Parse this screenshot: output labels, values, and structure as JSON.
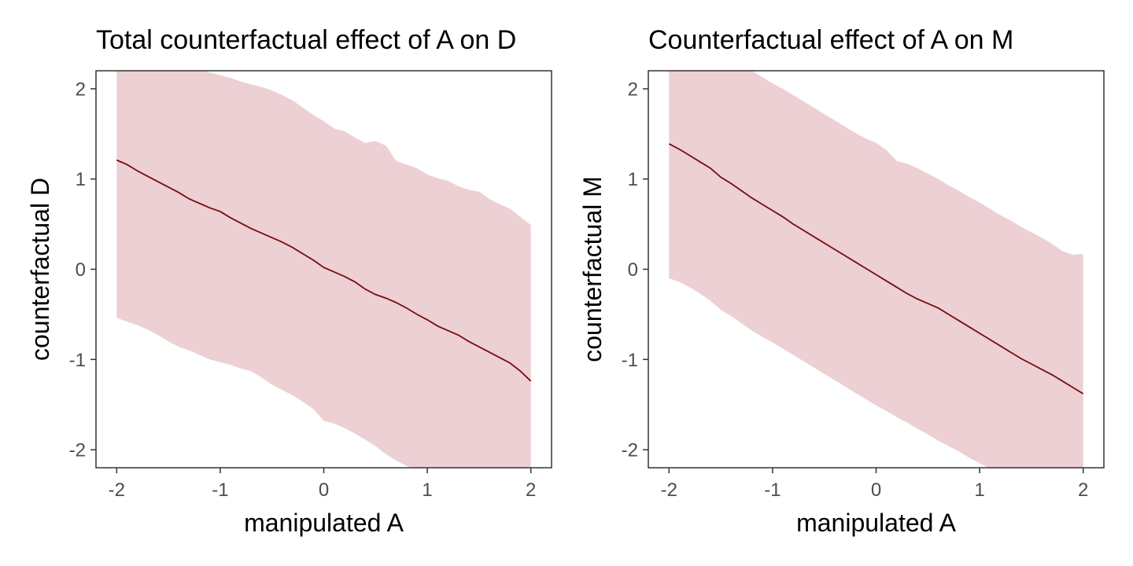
{
  "chart_data": [
    {
      "type": "area",
      "title": "Total counterfactual effect of A on D",
      "xlabel": "manipulated A",
      "ylabel": "counterfactual D",
      "xlim": [
        -2.2,
        2.2
      ],
      "ylim": [
        -2.2,
        2.2
      ],
      "xticks": [
        -2,
        -1,
        0,
        1,
        2
      ],
      "yticks": [
        -2,
        -1,
        0,
        1,
        2
      ],
      "grid": false,
      "fill_color": "#ecd0d3",
      "line_color": "#7a0a0f",
      "x": [
        -2.0,
        -1.9,
        -1.8,
        -1.7,
        -1.6,
        -1.5,
        -1.4,
        -1.3,
        -1.2,
        -1.1,
        -1.0,
        -0.9,
        -0.8,
        -0.7,
        -0.6,
        -0.5,
        -0.4,
        -0.3,
        -0.2,
        -0.1,
        0.0,
        0.1,
        0.2,
        0.3,
        0.4,
        0.5,
        0.6,
        0.7,
        0.8,
        0.9,
        1.0,
        1.1,
        1.2,
        1.3,
        1.4,
        1.5,
        1.6,
        1.7,
        1.8,
        1.9,
        2.0
      ],
      "mean": [
        1.21,
        1.16,
        1.09,
        1.03,
        0.97,
        0.91,
        0.85,
        0.78,
        0.73,
        0.68,
        0.64,
        0.57,
        0.51,
        0.45,
        0.4,
        0.35,
        0.3,
        0.24,
        0.17,
        0.1,
        0.02,
        -0.03,
        -0.08,
        -0.14,
        -0.22,
        -0.28,
        -0.32,
        -0.37,
        -0.43,
        -0.5,
        -0.56,
        -0.63,
        -0.68,
        -0.73,
        -0.8,
        -0.86,
        -0.92,
        -0.98,
        -1.04,
        -1.13,
        -1.24
      ],
      "lower": [
        -0.54,
        -0.58,
        -0.62,
        -0.67,
        -0.73,
        -0.8,
        -0.86,
        -0.9,
        -0.95,
        -1.0,
        -1.03,
        -1.06,
        -1.1,
        -1.13,
        -1.2,
        -1.28,
        -1.34,
        -1.4,
        -1.47,
        -1.55,
        -1.68,
        -1.71,
        -1.76,
        -1.82,
        -1.89,
        -1.96,
        -2.05,
        -2.12,
        -2.18,
        -2.22,
        -2.27,
        -2.33,
        -2.37,
        -2.42,
        -2.46,
        -2.52,
        -2.58,
        -2.64,
        -2.7,
        -2.76,
        -2.82
      ],
      "upper": [
        2.95,
        2.85,
        2.75,
        2.65,
        2.55,
        2.45,
        2.38,
        2.3,
        2.22,
        2.18,
        2.15,
        2.12,
        2.08,
        2.05,
        2.02,
        1.98,
        1.93,
        1.87,
        1.79,
        1.71,
        1.64,
        1.56,
        1.53,
        1.46,
        1.4,
        1.42,
        1.37,
        1.2,
        1.16,
        1.12,
        1.05,
        1.01,
        0.98,
        0.92,
        0.88,
        0.86,
        0.78,
        0.72,
        0.67,
        0.58,
        0.49
      ]
    },
    {
      "type": "area",
      "title": "Counterfactual effect of A on M",
      "xlabel": "manipulated A",
      "ylabel": "counterfactual M",
      "xlim": [
        -2.2,
        2.2
      ],
      "ylim": [
        -2.2,
        2.2
      ],
      "xticks": [
        -2,
        -1,
        0,
        1,
        2
      ],
      "yticks": [
        -2,
        -1,
        0,
        1,
        2
      ],
      "grid": false,
      "fill_color": "#ecd0d3",
      "line_color": "#7a0a0f",
      "x": [
        -2.0,
        -1.9,
        -1.8,
        -1.7,
        -1.6,
        -1.5,
        -1.4,
        -1.3,
        -1.2,
        -1.1,
        -1.0,
        -0.9,
        -0.8,
        -0.7,
        -0.6,
        -0.5,
        -0.4,
        -0.3,
        -0.2,
        -0.1,
        0.0,
        0.1,
        0.2,
        0.3,
        0.4,
        0.5,
        0.6,
        0.7,
        0.8,
        0.9,
        1.0,
        1.1,
        1.2,
        1.3,
        1.4,
        1.5,
        1.6,
        1.7,
        1.8,
        1.9,
        2.0
      ],
      "mean": [
        1.39,
        1.33,
        1.26,
        1.19,
        1.12,
        1.02,
        0.95,
        0.87,
        0.79,
        0.72,
        0.65,
        0.58,
        0.5,
        0.43,
        0.36,
        0.29,
        0.22,
        0.15,
        0.08,
        0.01,
        -0.06,
        -0.13,
        -0.2,
        -0.27,
        -0.33,
        -0.38,
        -0.43,
        -0.5,
        -0.57,
        -0.64,
        -0.71,
        -0.78,
        -0.85,
        -0.92,
        -0.99,
        -1.05,
        -1.11,
        -1.17,
        -1.24,
        -1.31,
        -1.38
      ],
      "lower": [
        -0.1,
        -0.14,
        -0.2,
        -0.27,
        -0.35,
        -0.45,
        -0.52,
        -0.6,
        -0.68,
        -0.75,
        -0.81,
        -0.88,
        -0.95,
        -1.02,
        -1.09,
        -1.16,
        -1.23,
        -1.3,
        -1.37,
        -1.44,
        -1.51,
        -1.57,
        -1.64,
        -1.7,
        -1.77,
        -1.83,
        -1.9,
        -1.96,
        -2.02,
        -2.09,
        -2.15,
        -2.21,
        -2.27,
        -2.34,
        -2.4,
        -2.47,
        -2.53,
        -2.59,
        -2.66,
        -2.72,
        -2.78
      ],
      "upper": [
        2.95,
        2.85,
        2.75,
        2.65,
        2.55,
        2.45,
        2.36,
        2.27,
        2.2,
        2.13,
        2.06,
        2.0,
        1.93,
        1.86,
        1.79,
        1.72,
        1.65,
        1.58,
        1.51,
        1.45,
        1.4,
        1.32,
        1.2,
        1.17,
        1.12,
        1.06,
        1.0,
        0.93,
        0.87,
        0.8,
        0.74,
        0.67,
        0.6,
        0.54,
        0.47,
        0.41,
        0.35,
        0.28,
        0.2,
        0.16,
        0.17
      ]
    }
  ]
}
